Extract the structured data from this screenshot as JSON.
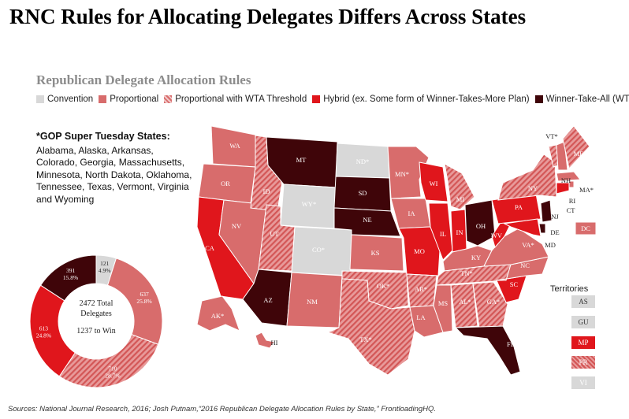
{
  "title": "RNC Rules for Allocating Delegates Differs Across States",
  "subtitle": "Republican Delegate Allocation Rules",
  "legend": [
    {
      "label": "Convention",
      "key": "conv"
    },
    {
      "label": "Proportional",
      "key": "prop"
    },
    {
      "label": "Proportional with WTA Threshold",
      "key": "wta-th"
    },
    {
      "label": "Hybrid (ex. Some form of Winner-Takes-More Plan)",
      "key": "hyb"
    },
    {
      "label": "Winner-Take-All (WTA)",
      "key": "wta"
    }
  ],
  "colors": {
    "conv": "#d8d8d8",
    "prop": "#d86c6c",
    "wta_threshold": "#e89a9a",
    "hybrid": "#e0161c",
    "wta": "#3f0509"
  },
  "super_tuesday": {
    "heading": "*GOP Super Tuesday States:",
    "text": "Alabama, Alaska, Arkansas, Colorado, Georgia, Massachusetts, Minnesota, North Dakota, Oklahoma, Tennessee, Texas, Vermont, Virginia and Wyoming"
  },
  "donut": {
    "center_line1": "2472 Total",
    "center_line2": "Delegates",
    "center_line3": "1237 to Win",
    "slices": [
      {
        "value": 121,
        "pct": "4.9%",
        "key": "conv"
      },
      {
        "value": 637,
        "pct": "25.8%",
        "key": "prop"
      },
      {
        "value": 710,
        "pct": "28.7%",
        "key": "wta-th"
      },
      {
        "value": 613,
        "pct": "24.8%",
        "key": "hyb"
      },
      {
        "value": 391,
        "pct": "15.8%",
        "key": "wta"
      }
    ]
  },
  "states": [
    {
      "label": "WA",
      "key": "prop"
    },
    {
      "label": "OR",
      "key": "prop"
    },
    {
      "label": "CA",
      "key": "hyb"
    },
    {
      "label": "NV",
      "key": "prop"
    },
    {
      "label": "ID",
      "key": "wta-th"
    },
    {
      "label": "MT",
      "key": "wta"
    },
    {
      "label": "WY*",
      "key": "conv"
    },
    {
      "label": "UT",
      "key": "wta-th"
    },
    {
      "label": "AZ",
      "key": "wta"
    },
    {
      "label": "CO*",
      "key": "conv"
    },
    {
      "label": "NM",
      "key": "prop"
    },
    {
      "label": "ND*",
      "key": "conv"
    },
    {
      "label": "SD",
      "key": "wta"
    },
    {
      "label": "NE",
      "key": "wta"
    },
    {
      "label": "KS",
      "key": "prop"
    },
    {
      "label": "OK*",
      "key": "wta-th"
    },
    {
      "label": "TX*",
      "key": "wta-th"
    },
    {
      "label": "MN*",
      "key": "prop"
    },
    {
      "label": "IA",
      "key": "prop"
    },
    {
      "label": "MO",
      "key": "hyb"
    },
    {
      "label": "AR*",
      "key": "wta-th"
    },
    {
      "label": "LA",
      "key": "prop"
    },
    {
      "label": "WI",
      "key": "hyb"
    },
    {
      "label": "IL",
      "key": "hyb"
    },
    {
      "label": "MI",
      "key": "wta-th"
    },
    {
      "label": "IN",
      "key": "hyb"
    },
    {
      "label": "OH",
      "key": "wta"
    },
    {
      "label": "KY",
      "key": "prop"
    },
    {
      "label": "TN*",
      "key": "wta-th"
    },
    {
      "label": "MS",
      "key": "prop"
    },
    {
      "label": "AL*",
      "key": "wta-th"
    },
    {
      "label": "GA*",
      "key": "wta-th"
    },
    {
      "label": "FL",
      "key": "wta"
    },
    {
      "label": "SC",
      "key": "hyb"
    },
    {
      "label": "NC",
      "key": "prop"
    },
    {
      "label": "VA*",
      "key": "prop"
    },
    {
      "label": "WV",
      "key": "hyb"
    },
    {
      "label": "PA",
      "key": "hyb"
    },
    {
      "label": "NY",
      "key": "wta-th"
    },
    {
      "label": "VT*",
      "key": "wta-th"
    },
    {
      "label": "NH",
      "key": "prop"
    },
    {
      "label": "ME",
      "key": "wta-th"
    },
    {
      "label": "MA*",
      "key": "prop"
    },
    {
      "label": "RI",
      "key": "prop"
    },
    {
      "label": "CT",
      "key": "hyb"
    },
    {
      "label": "NJ",
      "key": "wta"
    },
    {
      "label": "DE",
      "key": "wta"
    },
    {
      "label": "MD",
      "key": "hyb"
    },
    {
      "label": "DC",
      "key": "prop"
    },
    {
      "label": "AK*",
      "key": "prop"
    },
    {
      "label": "HI",
      "key": "prop"
    }
  ],
  "territories": {
    "title": "Territories",
    "items": [
      {
        "label": "AS",
        "key": "conv"
      },
      {
        "label": "GU",
        "key": "conv"
      },
      {
        "label": "MP",
        "key": "hyb"
      },
      {
        "label": "PR",
        "key": "wta-th"
      },
      {
        "label": "VI",
        "key": "conv"
      }
    ]
  },
  "sources": "Sources: National Journal Research, 2016; Josh Putnam,“2016 Republican Delegate Allocation Rules by State,” FrontloadingHQ."
}
